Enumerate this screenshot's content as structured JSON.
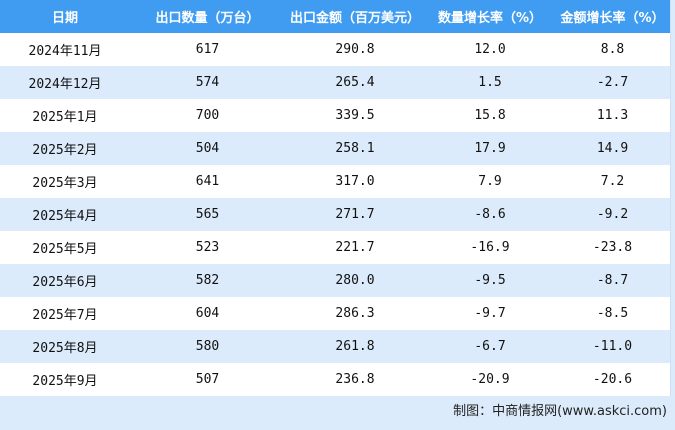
{
  "headers": [
    "日期",
    "出口数量（万台）",
    "出口金额（百万美元）",
    "数量增长率（%）",
    "金额增长率（%）"
  ],
  "rows": [
    [
      "2024年11月",
      "617",
      "290.8",
      "12.0",
      "8.8"
    ],
    [
      "2024年12月",
      "574",
      "265.4",
      "1.5",
      "-2.7"
    ],
    [
      "2025年1月",
      "700",
      "339.5",
      "15.8",
      "11.3"
    ],
    [
      "2025年2月",
      "504",
      "258.1",
      "17.9",
      "14.9"
    ],
    [
      "2025年3月",
      "641",
      "317.0",
      "7.9",
      "7.2"
    ],
    [
      "2025年4月",
      "565",
      "271.7",
      "-8.6",
      "-9.2"
    ],
    [
      "2025年5月",
      "523",
      "221.7",
      "-16.9",
      "-23.8"
    ],
    [
      "2025年6月",
      "582",
      "280.0",
      "-9.5",
      "-8.7"
    ],
    [
      "2025年7月",
      "604",
      "286.3",
      "-9.7",
      "-8.5"
    ],
    [
      "2025年8月",
      "580",
      "261.8",
      "-6.7",
      "-11.0"
    ],
    [
      "2025年9月",
      "507",
      "236.8",
      "-20.9",
      "-20.6"
    ]
  ],
  "footer": "制图：中商情报网(www.askci.com)",
  "watermark": "中商产业研究院",
  "colors": {
    "header": "#3f9cf1",
    "stripe": "#dcebfb"
  }
}
